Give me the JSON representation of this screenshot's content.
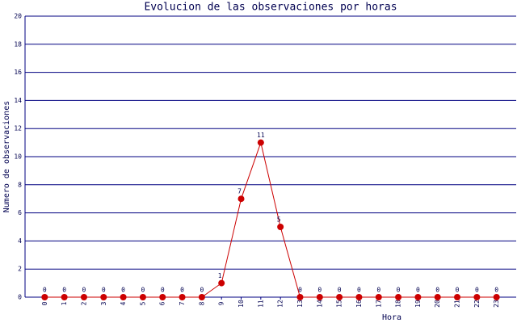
{
  "chart_data": {
    "type": "line",
    "title": "Evolucion de las observaciones por horas",
    "x_label": "Hora",
    "y_label": "Numero de observaciones",
    "categories": [
      "0",
      "1",
      "2",
      "3",
      "4",
      "5",
      "6",
      "7",
      "8",
      "9",
      "10",
      "11",
      "12",
      "13",
      "14",
      "15",
      "16",
      "17",
      "18",
      "19",
      "20",
      "21",
      "22",
      "23"
    ],
    "values": [
      0,
      0,
      0,
      0,
      0,
      0,
      0,
      0,
      0,
      1,
      7,
      11,
      5,
      0,
      0,
      0,
      0,
      0,
      0,
      0,
      0,
      0,
      0,
      0
    ],
    "color": "#cc0000",
    "ylim": [
      0,
      20
    ],
    "yticks": [
      0,
      2,
      4,
      6,
      8,
      10,
      12,
      14,
      16,
      18,
      20
    ],
    "grid": true
  }
}
